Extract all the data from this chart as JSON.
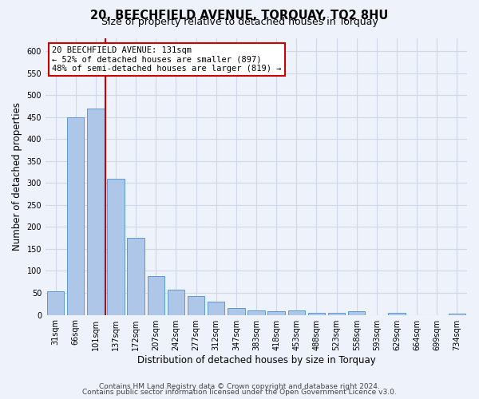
{
  "title1": "20, BEECHFIELD AVENUE, TORQUAY, TQ2 8HU",
  "title2": "Size of property relative to detached houses in Torquay",
  "xlabel": "Distribution of detached houses by size in Torquay",
  "ylabel": "Number of detached properties",
  "categories": [
    "31sqm",
    "66sqm",
    "101sqm",
    "137sqm",
    "172sqm",
    "207sqm",
    "242sqm",
    "277sqm",
    "312sqm",
    "347sqm",
    "383sqm",
    "418sqm",
    "453sqm",
    "488sqm",
    "523sqm",
    "558sqm",
    "593sqm",
    "629sqm",
    "664sqm",
    "699sqm",
    "734sqm"
  ],
  "values": [
    53,
    450,
    470,
    310,
    175,
    88,
    58,
    43,
    31,
    15,
    10,
    8,
    10,
    5,
    5,
    8,
    0,
    5,
    0,
    0,
    3
  ],
  "bar_color": "#aec6e8",
  "bar_edgecolor": "#5b9bd5",
  "vline_x_idx": 3,
  "vline_color": "#cc0000",
  "annotation_line1": "20 BEECHFIELD AVENUE: 131sqm",
  "annotation_line2": "← 52% of detached houses are smaller (897)",
  "annotation_line3": "48% of semi-detached houses are larger (819) →",
  "annotation_box_color": "#ffffff",
  "annotation_box_edgecolor": "#cc0000",
  "grid_color": "#d0d8e8",
  "background_color": "#eef2fb",
  "ylim": [
    0,
    630
  ],
  "yticks": [
    0,
    50,
    100,
    150,
    200,
    250,
    300,
    350,
    400,
    450,
    500,
    550,
    600
  ],
  "footer1": "Contains HM Land Registry data © Crown copyright and database right 2024.",
  "footer2": "Contains public sector information licensed under the Open Government Licence v3.0.",
  "title1_fontsize": 10.5,
  "title2_fontsize": 9,
  "tick_fontsize": 7,
  "xlabel_fontsize": 8.5,
  "ylabel_fontsize": 8.5,
  "annotation_fontsize": 7.5,
  "footer_fontsize": 6.5
}
